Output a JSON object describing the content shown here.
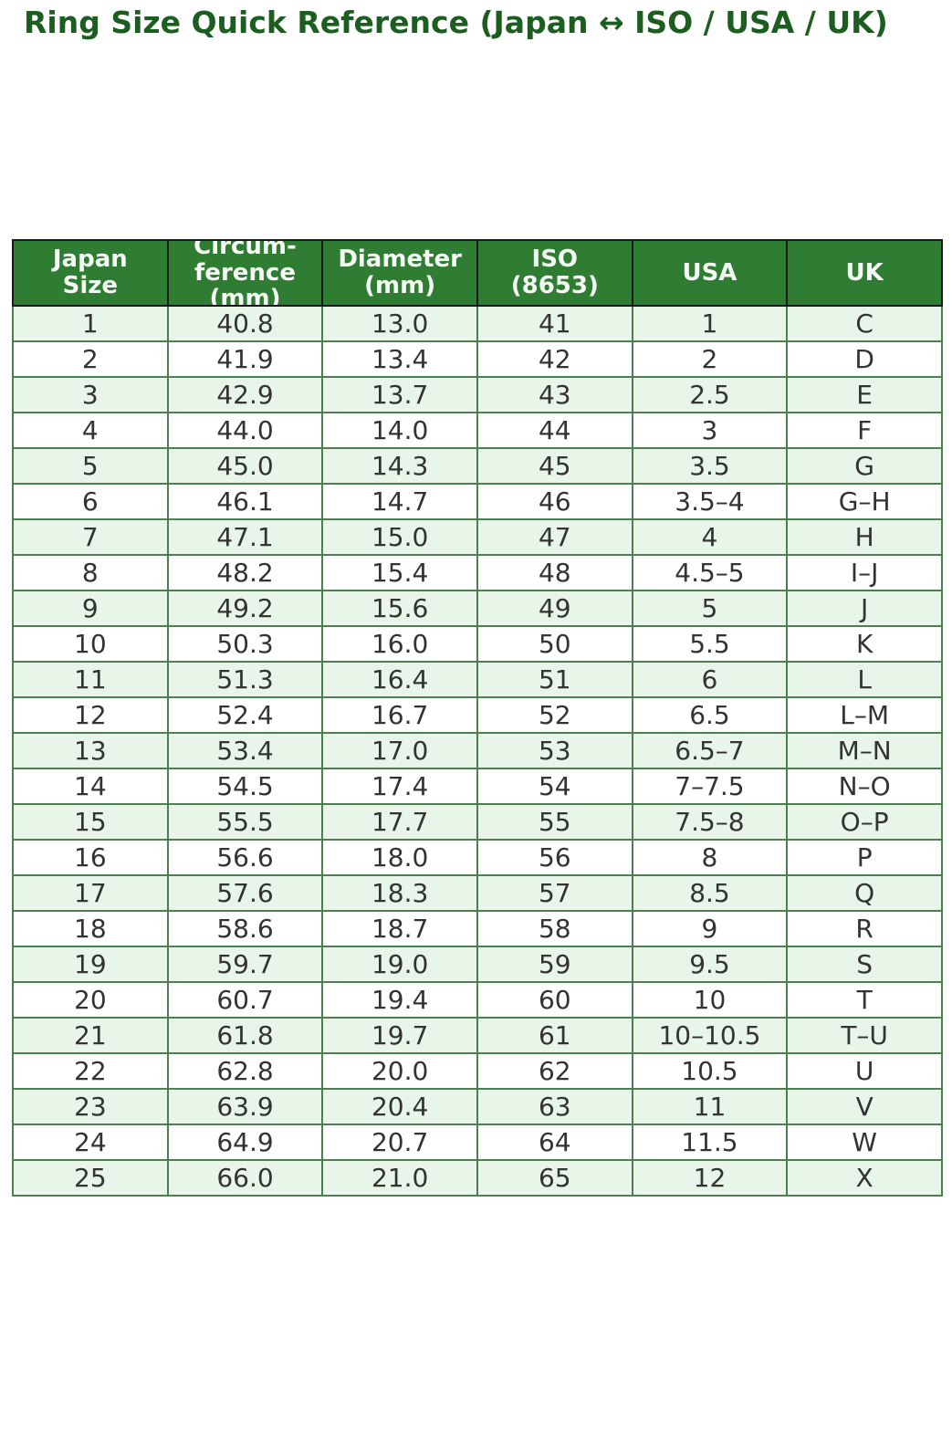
{
  "page": {
    "title": "Ring Size Quick Reference (Japan ↔ ISO / USA / UK)"
  },
  "colors": {
    "title_green": "#1b5e20",
    "header_bg": "#2e7d32",
    "header_text": "#f5faf5",
    "header_border": "#1a1a1a",
    "row_alt_bg": "#e8f5e9",
    "row_bg": "#ffffff",
    "cell_border": "#4e7d52",
    "cell_text": "#333333"
  },
  "table": {
    "columns": [
      {
        "key": "japan-size",
        "label": "Japan\nSize"
      },
      {
        "key": "circumference-mm",
        "label": "Circum-\nference\n(mm)"
      },
      {
        "key": "diameter-mm",
        "label": "Diameter\n(mm)"
      },
      {
        "key": "iso-8653",
        "label": "ISO\n(8653)"
      },
      {
        "key": "usa",
        "label": "USA"
      },
      {
        "key": "uk",
        "label": "UK"
      }
    ],
    "rows": [
      [
        "1",
        "40.8",
        "13.0",
        "41",
        "1",
        "C"
      ],
      [
        "2",
        "41.9",
        "13.4",
        "42",
        "2",
        "D"
      ],
      [
        "3",
        "42.9",
        "13.7",
        "43",
        "2.5",
        "E"
      ],
      [
        "4",
        "44.0",
        "14.0",
        "44",
        "3",
        "F"
      ],
      [
        "5",
        "45.0",
        "14.3",
        "45",
        "3.5",
        "G"
      ],
      [
        "6",
        "46.1",
        "14.7",
        "46",
        "3.5–4",
        "G–H"
      ],
      [
        "7",
        "47.1",
        "15.0",
        "47",
        "4",
        "H"
      ],
      [
        "8",
        "48.2",
        "15.4",
        "48",
        "4.5–5",
        "I–J"
      ],
      [
        "9",
        "49.2",
        "15.6",
        "49",
        "5",
        "J"
      ],
      [
        "10",
        "50.3",
        "16.0",
        "50",
        "5.5",
        "K"
      ],
      [
        "11",
        "51.3",
        "16.4",
        "51",
        "6",
        "L"
      ],
      [
        "12",
        "52.4",
        "16.7",
        "52",
        "6.5",
        "L–M"
      ],
      [
        "13",
        "53.4",
        "17.0",
        "53",
        "6.5–7",
        "M–N"
      ],
      [
        "14",
        "54.5",
        "17.4",
        "54",
        "7–7.5",
        "N–O"
      ],
      [
        "15",
        "55.5",
        "17.7",
        "55",
        "7.5–8",
        "O–P"
      ],
      [
        "16",
        "56.6",
        "18.0",
        "56",
        "8",
        "P"
      ],
      [
        "17",
        "57.6",
        "18.3",
        "57",
        "8.5",
        "Q"
      ],
      [
        "18",
        "58.6",
        "18.7",
        "58",
        "9",
        "R"
      ],
      [
        "19",
        "59.7",
        "19.0",
        "59",
        "9.5",
        "S"
      ],
      [
        "20",
        "60.7",
        "19.4",
        "60",
        "10",
        "T"
      ],
      [
        "21",
        "61.8",
        "19.7",
        "61",
        "10–10.5",
        "T–U"
      ],
      [
        "22",
        "62.8",
        "20.0",
        "62",
        "10.5",
        "U"
      ],
      [
        "23",
        "63.9",
        "20.4",
        "63",
        "11",
        "V"
      ],
      [
        "24",
        "64.9",
        "20.7",
        "64",
        "11.5",
        "W"
      ],
      [
        "25",
        "66.0",
        "21.0",
        "65",
        "12",
        "X"
      ]
    ]
  }
}
